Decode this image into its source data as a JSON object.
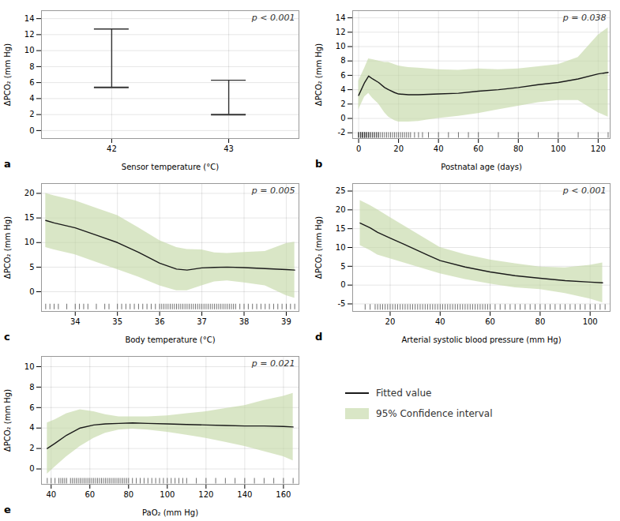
{
  "chart_data": [
    {
      "type": "errorbar",
      "panel_label": "a",
      "annotation": "p < 0.001",
      "x": [
        42,
        43
      ],
      "values": [
        5.4,
        2.0
      ],
      "ci_low": [
        5.4,
        2.0
      ],
      "ci_high": [
        12.7,
        6.3
      ],
      "xlim": [
        41.4,
        43.6
      ],
      "xticks": [
        42,
        43
      ],
      "ylim": [
        -1,
        15
      ],
      "yticks": [
        0,
        2,
        4,
        6,
        8,
        10,
        12,
        14
      ],
      "xlabel": "Sensor temperature (°C)",
      "ylabel": "ΔPCO₂ (mm Hg)",
      "grid": true
    },
    {
      "type": "line",
      "panel_label": "b",
      "annotation": "p = 0.038",
      "x": [
        0,
        3,
        5,
        7,
        10,
        13,
        15,
        18,
        20,
        25,
        30,
        35,
        40,
        50,
        60,
        70,
        80,
        90,
        100,
        110,
        120,
        125
      ],
      "values": [
        3.2,
        5.0,
        5.9,
        5.5,
        5.0,
        4.3,
        4.0,
        3.6,
        3.4,
        3.3,
        3.3,
        3.35,
        3.4,
        3.5,
        3.8,
        4.0,
        4.3,
        4.7,
        5.0,
        5.5,
        6.2,
        6.4
      ],
      "ci_low": [
        1.2,
        3.0,
        3.5,
        2.8,
        2.0,
        0.8,
        0.2,
        -0.3,
        -0.5,
        -0.5,
        -0.4,
        -0.2,
        0.0,
        0.3,
        0.7,
        1.2,
        1.7,
        2.2,
        2.5,
        2.5,
        0.8,
        0.2
      ],
      "ci_high": [
        5.2,
        7.0,
        8.3,
        8.2,
        8.0,
        7.8,
        7.8,
        7.5,
        7.3,
        7.1,
        7.0,
        6.9,
        6.8,
        6.7,
        6.9,
        6.8,
        6.9,
        7.2,
        7.5,
        8.5,
        11.6,
        12.6
      ],
      "rug_x": [
        0,
        0,
        0,
        1,
        1,
        1,
        1,
        2,
        2,
        2,
        2,
        3,
        3,
        3,
        3,
        4,
        4,
        4,
        5,
        5,
        5,
        6,
        6,
        7,
        7,
        8,
        8,
        9,
        9,
        10,
        10,
        11,
        12,
        13,
        14,
        15,
        16,
        17,
        18,
        19,
        20,
        21,
        22,
        23,
        24,
        25,
        26,
        28,
        30,
        32,
        35,
        40,
        45,
        50,
        55,
        60,
        70,
        80,
        90,
        100,
        110,
        120,
        125
      ],
      "rug_y": -2.3,
      "xlim": [
        -3,
        126
      ],
      "xticks": [
        0,
        20,
        40,
        60,
        80,
        100,
        120
      ],
      "ylim": [
        -2.8,
        15
      ],
      "yticks": [
        -2,
        0,
        2,
        4,
        6,
        8,
        10,
        12,
        14
      ],
      "xlabel": "Postnatal age (days)",
      "ylabel": "ΔPCO₂ (mm Hg)",
      "grid": true
    },
    {
      "type": "line",
      "panel_label": "c",
      "annotation": "p = 0.005",
      "x": [
        33.3,
        33.5,
        34.0,
        34.5,
        35.0,
        35.5,
        36.0,
        36.4,
        36.65,
        37.0,
        37.3,
        37.6,
        38.0,
        38.5,
        39.0,
        39.2
      ],
      "values": [
        14.5,
        14.0,
        13.0,
        11.5,
        10.0,
        8.0,
        5.8,
        4.6,
        4.4,
        4.85,
        4.95,
        5.0,
        4.9,
        4.7,
        4.5,
        4.4
      ],
      "ci_low": [
        9.0,
        8.5,
        7.5,
        6.0,
        4.5,
        3.0,
        1.2,
        0.2,
        0.2,
        1.2,
        2.0,
        2.2,
        1.8,
        1.2,
        -0.8,
        -1.3
      ],
      "ci_high": [
        20.0,
        19.5,
        18.5,
        17.0,
        15.5,
        13.0,
        10.4,
        9.0,
        8.6,
        8.5,
        7.9,
        7.8,
        8.0,
        8.2,
        9.8,
        10.1
      ],
      "rug_x": [
        33.3,
        33.4,
        33.5,
        33.6,
        33.8,
        34.0,
        34.1,
        34.2,
        34.3,
        34.5,
        34.7,
        34.8,
        35.0,
        35.1,
        35.2,
        35.3,
        35.4,
        35.5,
        35.6,
        35.7,
        35.8,
        35.9,
        36.0,
        36.05,
        36.1,
        36.15,
        36.2,
        36.25,
        36.3,
        36.35,
        36.4,
        36.45,
        36.5,
        36.55,
        36.6,
        36.65,
        36.7,
        36.75,
        36.8,
        36.85,
        36.9,
        36.95,
        37.0,
        37.05,
        37.1,
        37.15,
        37.2,
        37.25,
        37.3,
        37.35,
        37.4,
        37.45,
        37.5,
        37.55,
        37.6,
        37.65,
        37.7,
        37.75,
        37.8,
        37.9,
        38.0,
        38.1,
        38.2,
        38.3,
        38.4,
        38.5,
        38.6,
        38.7,
        38.8,
        38.9,
        39.0,
        39.1,
        39.2
      ],
      "rug_y": -3.0,
      "xlim": [
        33.2,
        39.3
      ],
      "xticks": [
        34,
        35,
        36,
        37,
        38,
        39
      ],
      "ylim": [
        -4,
        22
      ],
      "yticks": [
        0,
        5,
        10,
        15,
        20
      ],
      "xlabel": "Body temperature (°C)",
      "ylabel": "ΔPCO₂ (mm Hg)",
      "grid": true
    },
    {
      "type": "line",
      "panel_label": "d",
      "annotation": "p < 0.001",
      "x": [
        8,
        12,
        15,
        20,
        25,
        30,
        35,
        40,
        50,
        60,
        70,
        80,
        90,
        100,
        105
      ],
      "values": [
        16.5,
        15.2,
        14.0,
        12.5,
        11.0,
        9.5,
        8.0,
        6.5,
        4.8,
        3.5,
        2.5,
        1.8,
        1.2,
        0.8,
        0.6
      ],
      "ci_low": [
        10.5,
        9.2,
        8.0,
        7.0,
        6.0,
        5.0,
        4.0,
        3.0,
        1.5,
        0.3,
        -0.7,
        -1.2,
        -2.2,
        -3.7,
        -4.7
      ],
      "ci_high": [
        22.5,
        21.2,
        20.0,
        18.0,
        16.0,
        14.0,
        12.0,
        10.0,
        8.1,
        6.7,
        5.7,
        4.8,
        4.6,
        5.3,
        5.9
      ],
      "rug_x": [
        10,
        12,
        14,
        15,
        16,
        17,
        18,
        19,
        20,
        21,
        22,
        23,
        24,
        25,
        26,
        27,
        28,
        29,
        30,
        31,
        32,
        33,
        34,
        35,
        36,
        37,
        38,
        39,
        40,
        41,
        42,
        43,
        44,
        45,
        46,
        47,
        48,
        49,
        50,
        51,
        52,
        53,
        54,
        55,
        56,
        57,
        58,
        59,
        60,
        62,
        64,
        66,
        68,
        70,
        72,
        74,
        76,
        78,
        80,
        82,
        84,
        86,
        88,
        90,
        92,
        94,
        96,
        98,
        100,
        102,
        104,
        106
      ],
      "rug_y": -5.8,
      "xlim": [
        5,
        108
      ],
      "xticks": [
        20,
        40,
        60,
        80,
        100
      ],
      "ylim": [
        -7,
        27
      ],
      "yticks": [
        -5,
        0,
        5,
        10,
        15,
        20,
        25
      ],
      "xlabel": "Arterial systolic blood pressure (mm Hg)",
      "ylabel": "ΔPCO₂ (mm Hg)",
      "grid": true
    },
    {
      "type": "line",
      "panel_label": "e",
      "annotation": "p = 0.021",
      "x": [
        38,
        42,
        48,
        55,
        62,
        68,
        75,
        82,
        90,
        100,
        110,
        120,
        130,
        140,
        150,
        160,
        165
      ],
      "values": [
        2.0,
        2.5,
        3.3,
        4.0,
        4.3,
        4.4,
        4.45,
        4.5,
        4.45,
        4.4,
        4.35,
        4.3,
        4.25,
        4.2,
        4.2,
        4.15,
        4.1
      ],
      "ci_low": [
        -0.5,
        0.2,
        1.2,
        2.2,
        3.0,
        3.5,
        3.8,
        3.9,
        3.8,
        3.6,
        3.3,
        3.0,
        2.6,
        2.2,
        1.7,
        1.2,
        0.8
      ],
      "ci_high": [
        4.5,
        4.8,
        5.4,
        5.8,
        5.6,
        5.3,
        5.1,
        5.1,
        5.1,
        5.2,
        5.4,
        5.6,
        5.9,
        6.2,
        6.7,
        7.1,
        7.4
      ],
      "rug_x": [
        38,
        40,
        42,
        44,
        45,
        46,
        47,
        48,
        50,
        51,
        52,
        53,
        54,
        55,
        56,
        57,
        58,
        59,
        60,
        61,
        62,
        63,
        64,
        65,
        66,
        67,
        68,
        69,
        70,
        71,
        72,
        73,
        74,
        75,
        76,
        77,
        78,
        79,
        80,
        82,
        84,
        86,
        88,
        90,
        92,
        94,
        96,
        98,
        100,
        102,
        104,
        106,
        108,
        110,
        115,
        120,
        125,
        130,
        135,
        140,
        145,
        150,
        155,
        160,
        165
      ],
      "rug_y": -1.15,
      "xlim": [
        35,
        168
      ],
      "xticks": [
        40,
        60,
        80,
        100,
        120,
        140,
        160
      ],
      "ylim": [
        -1.5,
        11
      ],
      "yticks": [
        0,
        2,
        4,
        6,
        8,
        10
      ],
      "xlabel": "PaO₂ (mm Hg)",
      "ylabel": "ΔPCO₂ (mm Hg)",
      "grid": true
    },
    {
      "type": "legend",
      "series": [
        {
          "name": "Fitted value",
          "type": "line",
          "color": "#1a1a1a"
        },
        {
          "name": "95% Confidence interval",
          "type": "area",
          "color": "#c5d9a8"
        }
      ]
    }
  ]
}
